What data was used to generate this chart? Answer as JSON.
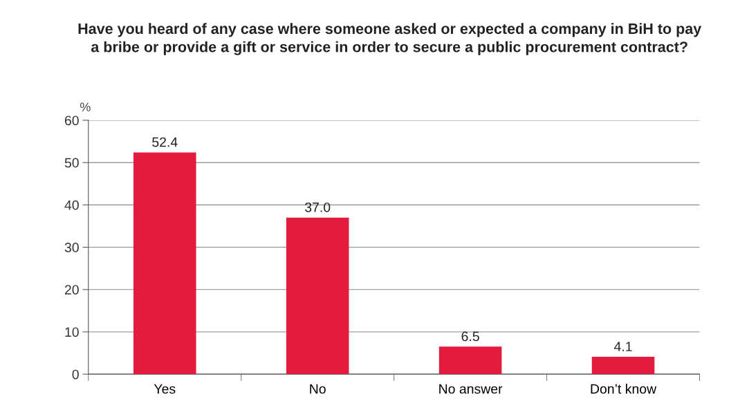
{
  "chart_data": {
    "type": "bar",
    "title": "Have you heard of any case where someone asked or expected a company in BiH to pay\na bribe or provide a gift or service in order to secure a public procurement contract?",
    "ylabel": "%",
    "categories": [
      "Yes",
      "No",
      "No answer",
      "Don’t know"
    ],
    "values": [
      52.4,
      37.0,
      6.5,
      4.1
    ],
    "value_labels": [
      "52.4",
      "37.0",
      "6.5",
      "4.1"
    ],
    "color": "#e31b3f",
    "ylim": [
      0,
      60
    ],
    "yticks": [
      0,
      10,
      20,
      30,
      40,
      50,
      60
    ],
    "grid": "y"
  }
}
